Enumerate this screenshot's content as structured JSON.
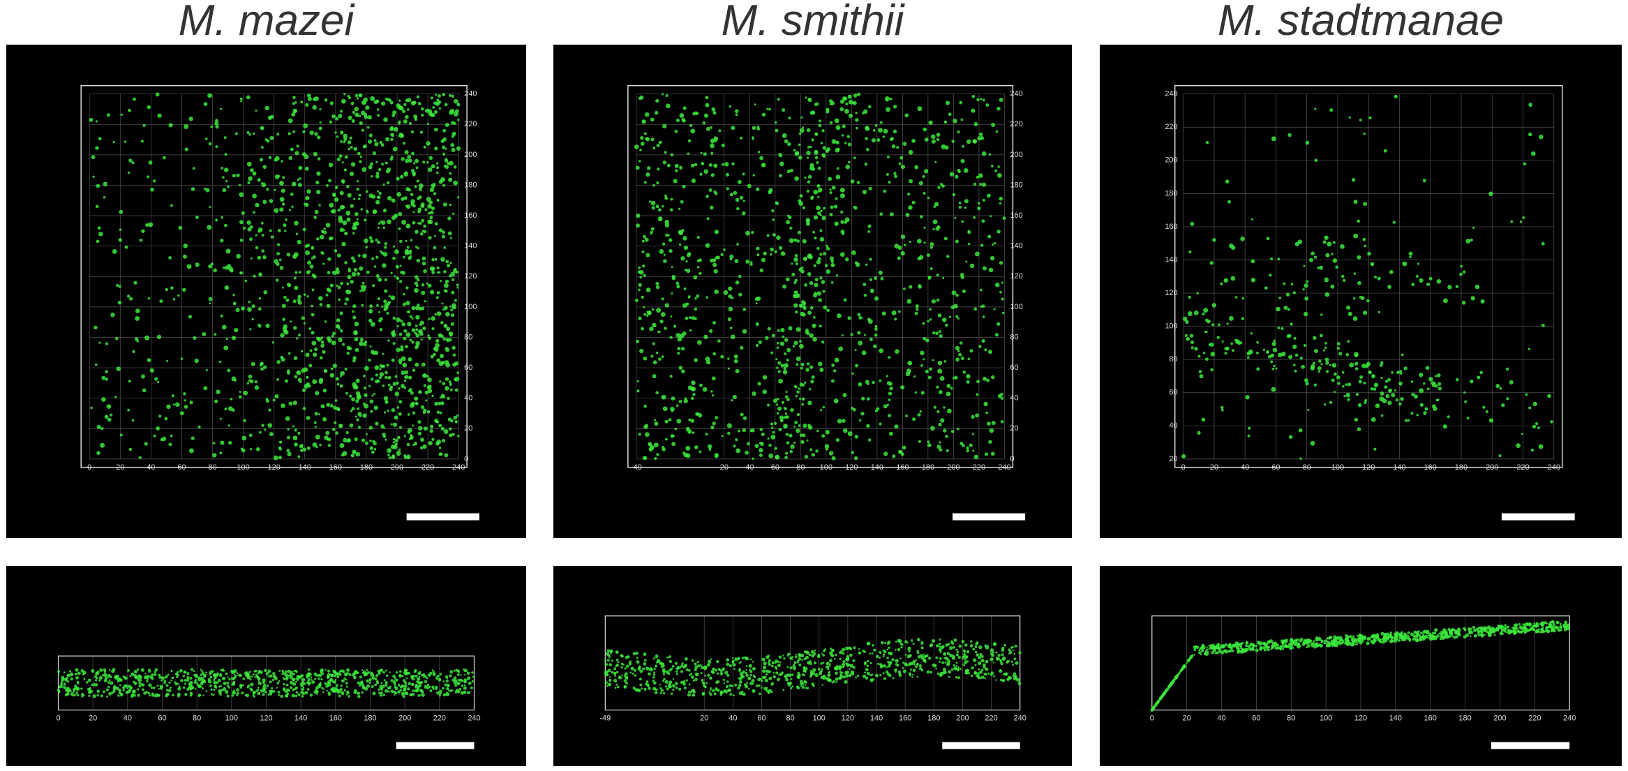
{
  "panels": [
    {
      "title": "M. mazei",
      "top_xticks": [
        0,
        20,
        40,
        60,
        80,
        100,
        120,
        140,
        160,
        180,
        200,
        220,
        240
      ],
      "top_yticks": [
        0,
        20,
        40,
        60,
        80,
        100,
        120,
        140,
        160,
        180,
        200,
        220,
        240
      ],
      "side_xticks": [
        0,
        20,
        40,
        60,
        80,
        100,
        120,
        140,
        160,
        180,
        200,
        220,
        240
      ]
    },
    {
      "title": "M. smithii",
      "top_xticks": [
        -49,
        20,
        40,
        60,
        80,
        100,
        120,
        140,
        160,
        180,
        200,
        220,
        240
      ],
      "top_yticks": [
        0,
        20,
        40,
        60,
        80,
        100,
        120,
        140,
        160,
        180,
        200,
        220,
        240
      ],
      "side_xticks": [
        -49,
        20,
        40,
        60,
        80,
        100,
        120,
        140,
        160,
        180,
        200,
        220,
        240
      ]
    },
    {
      "title": "M. stadtmanae",
      "top_xticks": [
        0,
        20,
        40,
        60,
        80,
        100,
        120,
        140,
        160,
        180,
        200,
        220,
        240
      ],
      "top_yticks": [
        20,
        40,
        60,
        80,
        100,
        120,
        140,
        160,
        180,
        200,
        220,
        240
      ],
      "side_xticks": [
        0,
        20,
        40,
        60,
        80,
        100,
        120,
        140,
        160,
        180,
        200,
        220,
        240
      ]
    }
  ]
}
